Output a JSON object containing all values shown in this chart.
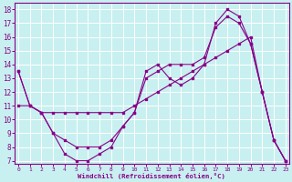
{
  "background_color": "#c8f0f0",
  "line_color": "#880088",
  "xlabel": "Windchill (Refroidissement éolien,°C)",
  "xlim": [
    -0.3,
    23.3
  ],
  "ylim": [
    6.8,
    18.5
  ],
  "yticks": [
    7,
    8,
    9,
    10,
    11,
    12,
    13,
    14,
    15,
    16,
    17,
    18
  ],
  "xticks": [
    0,
    1,
    2,
    3,
    4,
    5,
    6,
    7,
    8,
    9,
    10,
    11,
    12,
    13,
    14,
    15,
    16,
    17,
    18,
    19,
    20,
    21,
    22,
    23
  ],
  "series": [
    {
      "x": [
        0,
        1,
        2,
        3,
        4,
        5,
        6,
        7,
        8,
        9,
        10,
        11,
        12,
        13,
        14,
        15,
        16,
        17,
        18,
        19,
        20,
        21,
        22,
        23
      ],
      "y": [
        13.5,
        11.0,
        10.5,
        9.0,
        7.5,
        7.0,
        7.0,
        7.5,
        8.0,
        9.5,
        10.5,
        13.5,
        14.0,
        13.0,
        12.5,
        13.0,
        14.0,
        17.0,
        18.0,
        17.5,
        15.5,
        12.0,
        8.5,
        7.0
      ]
    },
    {
      "x": [
        0,
        1,
        2,
        3,
        4,
        5,
        6,
        7,
        8,
        9,
        10,
        11,
        12,
        13,
        14,
        15,
        16,
        17,
        18,
        19,
        20,
        21,
        22,
        23
      ],
      "y": [
        11.0,
        11.0,
        10.5,
        10.5,
        10.5,
        10.5,
        10.5,
        10.5,
        10.5,
        10.5,
        11.0,
        11.5,
        12.0,
        12.5,
        13.0,
        13.5,
        14.0,
        14.5,
        15.0,
        15.5,
        16.0,
        12.0,
        8.5,
        7.0
      ]
    },
    {
      "x": [
        0,
        1,
        2,
        3,
        4,
        5,
        6,
        7,
        8,
        9,
        10,
        11,
        12,
        13,
        14,
        15,
        16,
        17,
        18,
        19,
        20,
        21,
        22,
        23
      ],
      "y": [
        13.5,
        11.0,
        10.5,
        9.0,
        8.5,
        8.0,
        8.0,
        8.0,
        8.5,
        9.5,
        10.5,
        13.0,
        13.5,
        14.0,
        14.0,
        14.0,
        14.5,
        16.7,
        17.5,
        17.0,
        15.5,
        12.0,
        8.5,
        7.0
      ]
    }
  ]
}
